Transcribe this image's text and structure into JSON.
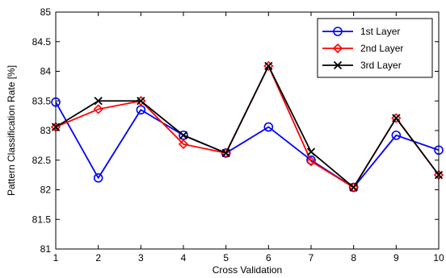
{
  "chart_data": {
    "type": "line",
    "title": "",
    "xlabel": "Cross Validation",
    "ylabel": "Pattern Classification Rate [%]",
    "x": [
      1,
      2,
      3,
      4,
      5,
      6,
      7,
      8,
      9,
      10
    ],
    "xlim": [
      1,
      10
    ],
    "ylim": [
      81,
      85
    ],
    "xticks": [
      "1",
      "2",
      "3",
      "4",
      "5",
      "6",
      "7",
      "8",
      "9",
      "10"
    ],
    "yticks": [
      "81",
      "81.5",
      "82",
      "82.5",
      "83",
      "83.5",
      "84",
      "84.5",
      "85"
    ],
    "grid": false,
    "legend_position": "top-right",
    "series": [
      {
        "name": "1st Layer",
        "color": "#0000ff",
        "marker": "circle",
        "values": [
          83.48,
          82.2,
          83.35,
          82.92,
          82.62,
          83.06,
          82.5,
          82.04,
          82.92,
          82.67
        ]
      },
      {
        "name": "2nd Layer",
        "color": "#ff0000",
        "marker": "diamond",
        "values": [
          83.06,
          83.36,
          83.5,
          82.77,
          82.62,
          84.09,
          82.48,
          82.04,
          83.21,
          82.25
        ]
      },
      {
        "name": "3rd Layer",
        "color": "#000000",
        "marker": "x",
        "values": [
          83.06,
          83.5,
          83.5,
          82.92,
          82.62,
          84.09,
          82.64,
          82.04,
          83.21,
          82.25
        ]
      }
    ]
  }
}
